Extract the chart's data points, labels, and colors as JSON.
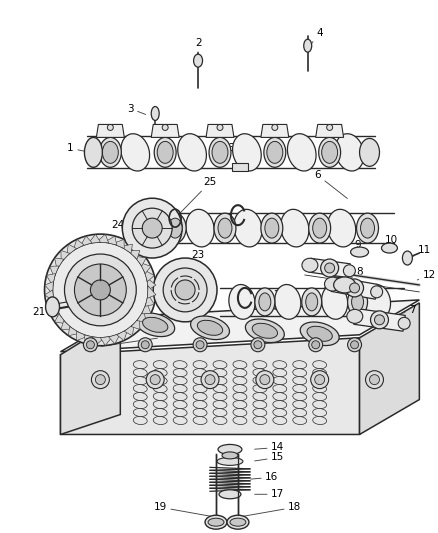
{
  "bg_color": "#ffffff",
  "line_color": "#2a2a2a",
  "fig_width": 4.38,
  "fig_height": 5.33,
  "dpi": 100,
  "label_fontsize": 7.5,
  "leader_color": "#444444",
  "fill_light": "#f0f0f0",
  "fill_mid": "#e0e0e0",
  "fill_dark": "#c8c8c8"
}
